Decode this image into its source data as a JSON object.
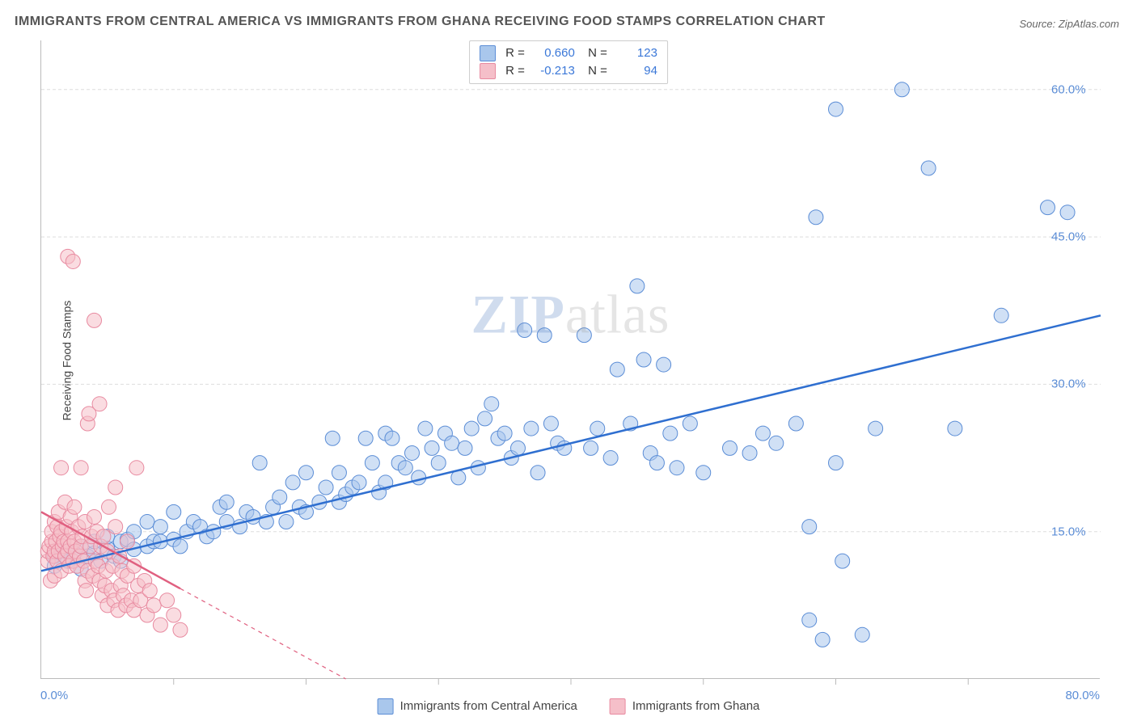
{
  "title": "IMMIGRANTS FROM CENTRAL AMERICA VS IMMIGRANTS FROM GHANA RECEIVING FOOD STAMPS CORRELATION CHART",
  "source": "Source: ZipAtlas.com",
  "ylabel": "Receiving Food Stamps",
  "watermark_a": "ZIP",
  "watermark_b": "atlas",
  "chart": {
    "type": "scatter_correlation",
    "xlim": [
      0,
      80
    ],
    "ylim": [
      0,
      65
    ],
    "xtick_labels": [
      {
        "v": 0,
        "label": "0.0%"
      },
      {
        "v": 80,
        "label": "80.0%"
      }
    ],
    "xtick_marks": [
      10,
      20,
      30,
      40,
      50,
      60,
      70
    ],
    "ytick_labels": [
      {
        "v": 15,
        "label": "15.0%"
      },
      {
        "v": 30,
        "label": "30.0%"
      },
      {
        "v": 45,
        "label": "45.0%"
      },
      {
        "v": 60,
        "label": "60.0%"
      }
    ],
    "grid_color": "#dddddd",
    "grid_dash": "4,3",
    "tick_label_color": "#5b8dd6",
    "tick_label_fontsize": 15,
    "marker_radius": 9,
    "marker_opacity": 0.55,
    "background_color": "#ffffff",
    "regression_width": 2.5,
    "series": [
      {
        "name": "Immigrants from Central America",
        "fill": "#a9c7ec",
        "stroke": "#5b8dd6",
        "line_color": "#2f6fd0",
        "r": 0.66,
        "n": 123,
        "regression": {
          "x1": 0,
          "y1": 11,
          "x2": 80,
          "y2": 37
        },
        "regression_ext_dash": null,
        "points": [
          [
            1,
            12.5
          ],
          [
            1,
            11.5
          ],
          [
            1.5,
            13
          ],
          [
            2,
            12
          ],
          [
            2,
            13
          ],
          [
            2.5,
            12.8
          ],
          [
            3,
            11.2
          ],
          [
            3,
            13.5
          ],
          [
            3.5,
            12.5
          ],
          [
            4,
            12.8
          ],
          [
            4,
            14
          ],
          [
            4.5,
            12
          ],
          [
            5,
            13.3
          ],
          [
            5,
            14.5
          ],
          [
            5.5,
            12.5
          ],
          [
            6,
            12
          ],
          [
            6,
            14
          ],
          [
            6.5,
            14.2
          ],
          [
            7,
            15
          ],
          [
            7,
            13.2
          ],
          [
            8,
            13.5
          ],
          [
            8,
            16
          ],
          [
            8.5,
            14
          ],
          [
            9,
            14
          ],
          [
            9,
            15.5
          ],
          [
            10,
            14.2
          ],
          [
            10,
            17
          ],
          [
            10.5,
            13.5
          ],
          [
            11,
            15
          ],
          [
            11.5,
            16
          ],
          [
            12,
            15.5
          ],
          [
            12.5,
            14.5
          ],
          [
            13,
            15
          ],
          [
            13.5,
            17.5
          ],
          [
            14,
            16
          ],
          [
            14,
            18
          ],
          [
            15,
            15.5
          ],
          [
            15.5,
            17
          ],
          [
            16,
            16.5
          ],
          [
            16.5,
            22
          ],
          [
            17,
            16
          ],
          [
            17.5,
            17.5
          ],
          [
            18,
            18.5
          ],
          [
            18.5,
            16
          ],
          [
            19,
            20
          ],
          [
            19.5,
            17.5
          ],
          [
            20,
            17
          ],
          [
            20,
            21
          ],
          [
            21,
            18
          ],
          [
            21.5,
            19.5
          ],
          [
            22,
            24.5
          ],
          [
            22.5,
            18
          ],
          [
            22.5,
            21
          ],
          [
            23,
            18.8
          ],
          [
            23.5,
            19.5
          ],
          [
            24,
            20
          ],
          [
            24.5,
            24.5
          ],
          [
            25,
            22
          ],
          [
            25.5,
            19
          ],
          [
            26,
            25
          ],
          [
            26,
            20
          ],
          [
            26.5,
            24.5
          ],
          [
            27,
            22
          ],
          [
            27.5,
            21.5
          ],
          [
            28,
            23
          ],
          [
            28.5,
            20.5
          ],
          [
            29,
            25.5
          ],
          [
            29.5,
            23.5
          ],
          [
            30,
            22
          ],
          [
            30.5,
            25
          ],
          [
            31,
            24
          ],
          [
            31.5,
            20.5
          ],
          [
            32,
            23.5
          ],
          [
            32.5,
            25.5
          ],
          [
            33,
            21.5
          ],
          [
            33.5,
            26.5
          ],
          [
            34,
            28
          ],
          [
            34.5,
            24.5
          ],
          [
            35,
            25
          ],
          [
            35.5,
            22.5
          ],
          [
            36,
            23.5
          ],
          [
            36.5,
            35.5
          ],
          [
            37,
            25.5
          ],
          [
            37.5,
            21
          ],
          [
            38,
            35
          ],
          [
            38.5,
            26
          ],
          [
            39,
            24
          ],
          [
            39.5,
            23.5
          ],
          [
            41,
            35
          ],
          [
            41.5,
            23.5
          ],
          [
            42,
            25.5
          ],
          [
            43,
            22.5
          ],
          [
            43.5,
            31.5
          ],
          [
            44.5,
            26
          ],
          [
            45,
            40
          ],
          [
            45.5,
            32.5
          ],
          [
            46,
            23
          ],
          [
            46.5,
            22
          ],
          [
            47,
            32
          ],
          [
            47.5,
            25
          ],
          [
            48,
            21.5
          ],
          [
            49,
            26
          ],
          [
            50,
            21
          ],
          [
            52,
            23.5
          ],
          [
            53.5,
            23
          ],
          [
            54.5,
            25
          ],
          [
            55.5,
            24
          ],
          [
            57,
            26
          ],
          [
            58,
            15.5
          ],
          [
            58,
            6
          ],
          [
            58.5,
            47
          ],
          [
            59,
            4
          ],
          [
            60,
            58
          ],
          [
            60.5,
            12
          ],
          [
            62,
            4.5
          ],
          [
            63,
            25.5
          ],
          [
            65,
            60
          ],
          [
            67,
            52
          ],
          [
            69,
            25.5
          ],
          [
            72.5,
            37
          ],
          [
            76,
            48
          ],
          [
            77.5,
            47.5
          ],
          [
            60,
            22
          ]
        ]
      },
      {
        "name": "Immigrants from Ghana",
        "fill": "#f5bfc9",
        "stroke": "#e88aa0",
        "line_color": "#e06080",
        "r": -0.213,
        "n": 94,
        "regression": {
          "x1": 0,
          "y1": 17,
          "x2": 10.5,
          "y2": 9.2
        },
        "regression_ext_dash": {
          "x1": 10.5,
          "y1": 9.2,
          "x2": 23,
          "y2": 0
        },
        "points": [
          [
            0.5,
            12
          ],
          [
            0.5,
            13
          ],
          [
            0.6,
            13.5
          ],
          [
            0.7,
            10
          ],
          [
            0.8,
            14
          ],
          [
            0.8,
            15
          ],
          [
            0.9,
            12.5
          ],
          [
            1,
            16
          ],
          [
            1,
            13
          ],
          [
            1,
            10.5
          ],
          [
            1.1,
            14
          ],
          [
            1.2,
            15.5
          ],
          [
            1.2,
            12
          ],
          [
            1.3,
            17
          ],
          [
            1.3,
            13
          ],
          [
            1.4,
            14.5
          ],
          [
            1.5,
            21.5
          ],
          [
            1.5,
            15
          ],
          [
            1.5,
            11
          ],
          [
            1.6,
            13.5
          ],
          [
            1.7,
            14
          ],
          [
            1.8,
            18
          ],
          [
            1.8,
            12.5
          ],
          [
            1.9,
            15.5
          ],
          [
            2,
            43
          ],
          [
            2,
            14
          ],
          [
            2,
            13
          ],
          [
            2.1,
            11.5
          ],
          [
            2.2,
            16.5
          ],
          [
            2.2,
            13.5
          ],
          [
            2.3,
            15
          ],
          [
            2.4,
            42.5
          ],
          [
            2.4,
            12
          ],
          [
            2.5,
            14
          ],
          [
            2.5,
            17.5
          ],
          [
            2.6,
            13
          ],
          [
            2.7,
            11.5
          ],
          [
            2.8,
            15.5
          ],
          [
            2.9,
            12.5
          ],
          [
            3,
            21.5
          ],
          [
            3,
            13.5
          ],
          [
            3.1,
            14.5
          ],
          [
            3.2,
            12
          ],
          [
            3.3,
            16
          ],
          [
            3.3,
            10
          ],
          [
            3.4,
            9
          ],
          [
            3.5,
            11
          ],
          [
            3.5,
            26
          ],
          [
            3.6,
            27
          ],
          [
            3.7,
            13.5
          ],
          [
            3.8,
            14.5
          ],
          [
            3.9,
            10.5
          ],
          [
            4,
            36.5
          ],
          [
            4,
            16.5
          ],
          [
            4.1,
            12
          ],
          [
            4.2,
            15
          ],
          [
            4.3,
            11.5
          ],
          [
            4.4,
            28
          ],
          [
            4.4,
            10
          ],
          [
            4.5,
            13.5
          ],
          [
            4.6,
            8.5
          ],
          [
            4.7,
            14.5
          ],
          [
            4.8,
            9.5
          ],
          [
            4.9,
            11
          ],
          [
            5,
            13
          ],
          [
            5,
            7.5
          ],
          [
            5.1,
            17.5
          ],
          [
            5.3,
            9
          ],
          [
            5.4,
            11.5
          ],
          [
            5.5,
            8
          ],
          [
            5.6,
            15.5
          ],
          [
            5.6,
            19.5
          ],
          [
            5.8,
            7
          ],
          [
            5.9,
            12.5
          ],
          [
            6,
            9.5
          ],
          [
            6.1,
            11
          ],
          [
            6.2,
            8.5
          ],
          [
            6.4,
            7.5
          ],
          [
            6.5,
            10.5
          ],
          [
            6.5,
            14
          ],
          [
            6.8,
            8
          ],
          [
            7,
            7
          ],
          [
            7,
            11.5
          ],
          [
            7.2,
            21.5
          ],
          [
            7.3,
            9.5
          ],
          [
            7.5,
            8
          ],
          [
            7.8,
            10
          ],
          [
            8,
            6.5
          ],
          [
            8.2,
            9
          ],
          [
            8.5,
            7.5
          ],
          [
            9,
            5.5
          ],
          [
            9.5,
            8
          ],
          [
            10,
            6.5
          ],
          [
            10.5,
            5
          ]
        ]
      }
    ]
  },
  "legend": {
    "items": [
      {
        "label": "Immigrants from Central America",
        "fill": "#a9c7ec",
        "stroke": "#5b8dd6"
      },
      {
        "label": "Immigrants from Ghana",
        "fill": "#f5bfc9",
        "stroke": "#e88aa0"
      }
    ]
  },
  "rnbox": {
    "rows": [
      {
        "fill": "#a9c7ec",
        "stroke": "#5b8dd6",
        "r_label": "R =",
        "r": "0.660",
        "n_label": "N =",
        "n": "123"
      },
      {
        "fill": "#f5bfc9",
        "stroke": "#e88aa0",
        "r_label": "R =",
        "r": "-0.213",
        "n_label": "N =",
        "n": "94"
      }
    ]
  }
}
